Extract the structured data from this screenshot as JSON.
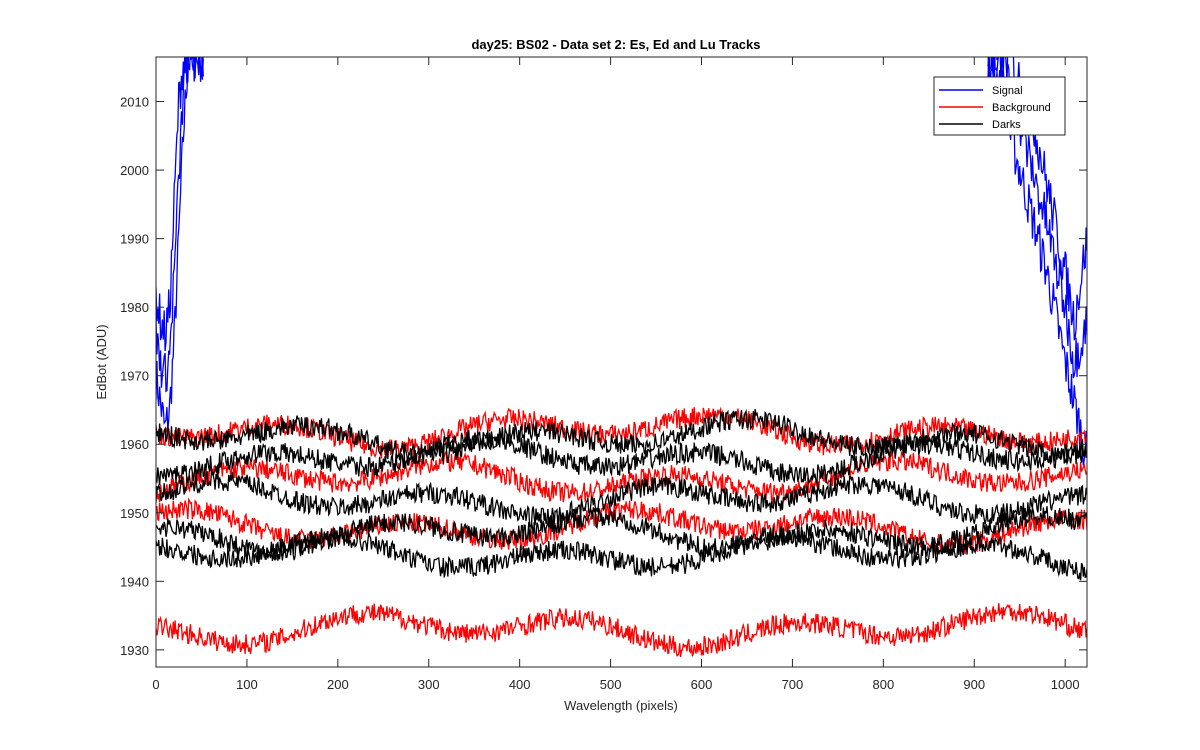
{
  "chart_data": {
    "type": "line",
    "title": "day25: BS02 - Data set 2: Es, Ed and Lu Tracks",
    "xlabel": "Wavelength (pixels)",
    "ylabel": "EdBot (ADU)",
    "xlim": [
      0,
      1024
    ],
    "ylim": [
      1927.5,
      2016.5
    ],
    "x_ticks": [
      0,
      100,
      200,
      300,
      400,
      500,
      600,
      700,
      800,
      900,
      1000
    ],
    "y_ticks": [
      1930,
      1940,
      1950,
      1960,
      1970,
      1980,
      1990,
      2000,
      2010
    ],
    "grid": false,
    "legend_placement": "top-right",
    "legend": [
      {
        "label": "Signal",
        "color": "#0000ff"
      },
      {
        "label": "Background",
        "color": "#ff0000"
      },
      {
        "label": "Darks",
        "color": "#000000"
      }
    ],
    "series": [
      {
        "name": "Signal",
        "color": "#0000ff",
        "x": [
          0,
          5,
          10,
          15,
          20,
          25,
          30,
          35,
          40,
          45,
          50,
          920,
          940,
          960,
          980,
          1000,
          1010,
          1024
        ],
        "y": [
          1970,
          1966,
          1962,
          1965,
          1975,
          1990,
          2005,
          2016,
          2016,
          2016,
          2016,
          2016,
          2005,
          1995,
          1985,
          1972,
          1966,
          1958
        ]
      },
      {
        "name": "Signal",
        "color": "#0000ff",
        "x": [
          0,
          5,
          10,
          15,
          20,
          25,
          30,
          35,
          40,
          45,
          50,
          920,
          940,
          960,
          980,
          1000,
          1010,
          1024
        ],
        "y": [
          1982,
          1978,
          1976,
          1980,
          1995,
          2010,
          2016,
          2016,
          2016,
          2016,
          2016,
          2016,
          2016,
          2010,
          1998,
          1985,
          1978,
          1990
        ]
      },
      {
        "name": "Signal",
        "color": "#0000ff",
        "x": [
          0,
          5,
          10,
          15,
          20,
          25,
          30,
          35,
          40,
          45,
          50,
          920,
          940,
          960,
          980,
          1000,
          1010,
          1024
        ],
        "y": [
          1976,
          1972,
          1970,
          1973,
          1985,
          1998,
          2012,
          2016,
          2016,
          2016,
          2016,
          2016,
          2012,
          2002,
          1992,
          1980,
          1972,
          1978
        ]
      },
      {
        "name": "Background",
        "color": "#ff0000",
        "x": [
          0,
          1024
        ],
        "y": [
          1962,
          1962
        ]
      },
      {
        "name": "Background",
        "color": "#ff0000",
        "x": [
          0,
          1024
        ],
        "y": [
          1955,
          1955
        ]
      },
      {
        "name": "Background",
        "color": "#ff0000",
        "x": [
          0,
          1024
        ],
        "y": [
          1948,
          1948
        ]
      },
      {
        "name": "Background",
        "color": "#ff0000",
        "x": [
          0,
          1024
        ],
        "y": [
          1933,
          1933
        ]
      },
      {
        "name": "Darks",
        "color": "#000000",
        "x": [
          0,
          1024
        ],
        "y": [
          1961,
          1961
        ]
      },
      {
        "name": "Darks",
        "color": "#000000",
        "x": [
          0,
          1024
        ],
        "y": [
          1958,
          1958
        ]
      },
      {
        "name": "Darks",
        "color": "#000000",
        "x": [
          0,
          1024
        ],
        "y": [
          1952,
          1952
        ]
      },
      {
        "name": "Darks",
        "color": "#000000",
        "x": [
          0,
          1024
        ],
        "y": [
          1947,
          1947
        ]
      },
      {
        "name": "Darks",
        "color": "#000000",
        "x": [
          0,
          1024
        ],
        "y": [
          1944,
          1944
        ]
      }
    ]
  }
}
